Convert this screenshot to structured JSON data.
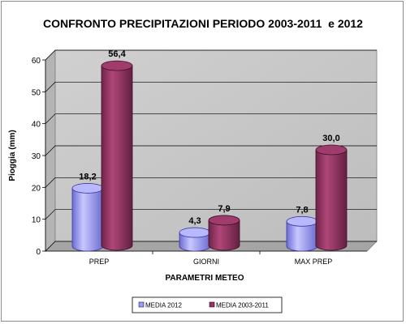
{
  "chart_data": {
    "type": "bar",
    "title": "CONFRONTO PRECIPITAZIONI PERIODO 2003-2011  e 2012",
    "xlabel": "PARAMETRI METEO",
    "ylabel": "Pioggia (mm)",
    "categories": [
      "PREP",
      "GIORNI",
      "MAX PREP"
    ],
    "ylim": [
      0,
      60
    ],
    "yticks": [
      0,
      10,
      20,
      30,
      40,
      50,
      60
    ],
    "grid": true,
    "legend_position": "bottom",
    "series": [
      {
        "name": "MEDIA 2012",
        "values": [
          18.2,
          4.3,
          7.8
        ],
        "labels": [
          "18,2",
          "4,3",
          "7,8"
        ],
        "color": "#9999ff"
      },
      {
        "name": "MEDIA 2003-2011",
        "values": [
          56.4,
          7.9,
          30.0
        ],
        "labels": [
          "56,4",
          "7,9",
          "30,0"
        ],
        "color": "#993366"
      }
    ]
  }
}
